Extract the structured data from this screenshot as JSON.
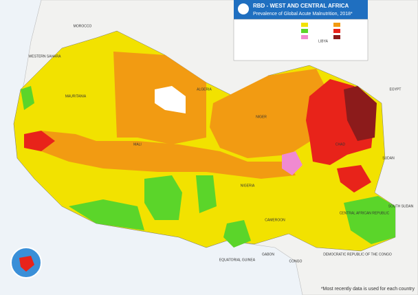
{
  "header": {
    "title": "RBD - WEST AND CENTRAL AFRICA",
    "subtitle": "Prevalence of Global Acute Malnutrition, 2018*"
  },
  "footnote": "*Most recently data is used for each country",
  "labels": [
    "WESTERN SAHARA",
    "ALGERIA",
    "MALI",
    "MAURITANIA",
    "NIGER",
    "CHAD",
    "NIGERIA",
    "CAMEROON",
    "CENTRAL AFRICAN REPUBLIC",
    "CONGO",
    "GABON",
    "EQUATORIAL GUINEA",
    "DEMOCRATIC REPUBLIC OF THE CONGO",
    "SUDAN",
    "SOUTH SUDAN",
    "LIBYA",
    "EGYPT",
    "MOROCCO"
  ]
}
